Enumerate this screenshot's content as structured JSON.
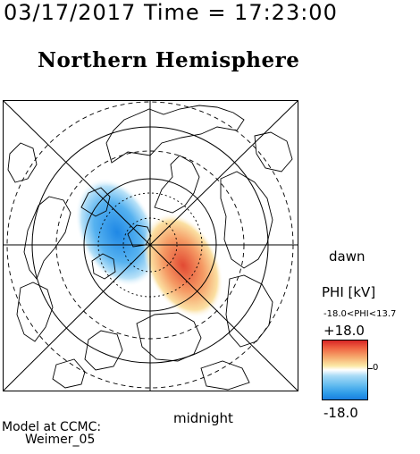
{
  "header": {
    "timestamp": "03/17/2017 Time = 17:23:00",
    "title": "Northern Hemisphere"
  },
  "map": {
    "dawn_label": "dawn",
    "midnight_label": "midnight"
  },
  "colorbar": {
    "title": "PHI [kV]",
    "range_text": "-18.0<PHI<13.7",
    "max_label": "+18.0",
    "mid_label": "0",
    "min_label": "-18.0",
    "positive_color": "#d82626",
    "negative_color": "#1a7fe0"
  },
  "footer": {
    "line1": "Model at CCMC:",
    "line2": "Weimer_05"
  }
}
